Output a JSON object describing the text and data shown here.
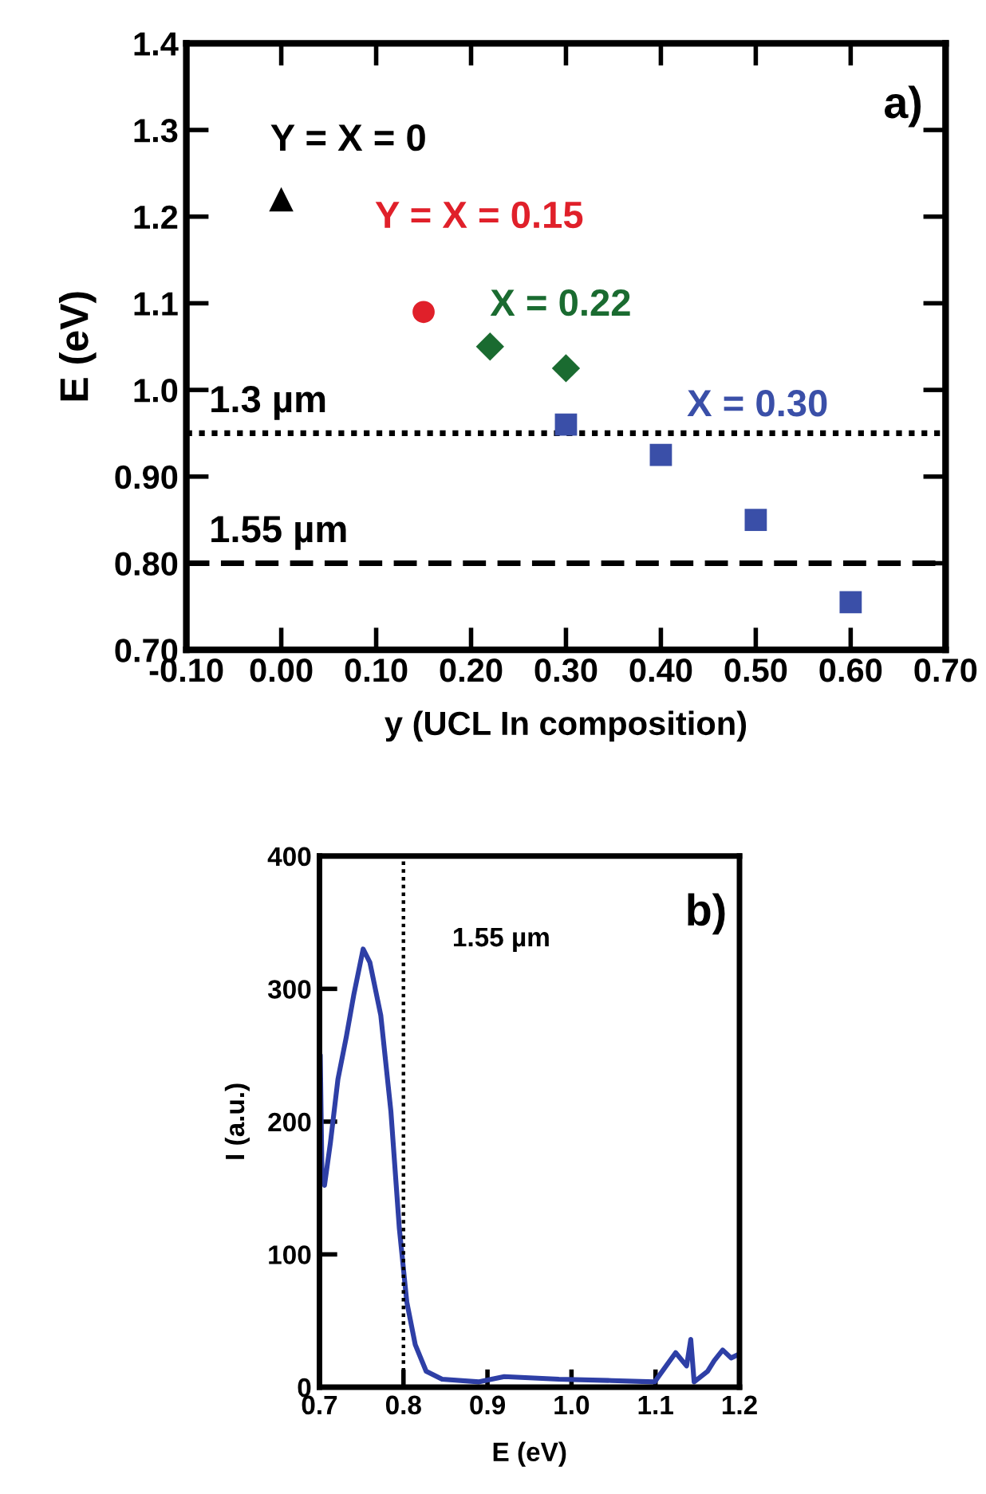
{
  "chart_data": [
    {
      "type": "scatter",
      "xlabel": "y (UCL In composition)",
      "ylabel": "E (eV)",
      "annotations": [
        "a)"
      ],
      "series": [
        {
          "name": "Y = X = 0",
          "color": "#000000",
          "marker": "triangle",
          "x": [
            0.0
          ],
          "values": [
            1.22
          ]
        },
        {
          "name": "Y = X = 0.15",
          "color": "#e0202a",
          "marker": "circle",
          "x": [
            0.15
          ],
          "values": [
            1.09
          ]
        },
        {
          "name": "X = 0.22",
          "color": "#1a6b30",
          "marker": "diamond",
          "x": [
            0.22,
            0.3
          ],
          "values": [
            1.05,
            1.025
          ]
        },
        {
          "name": "X = 0.30",
          "color": "#3a4fa8",
          "marker": "square",
          "x": [
            0.3,
            0.4,
            0.5,
            0.6
          ],
          "values": [
            0.96,
            0.925,
            0.85,
            0.755
          ]
        }
      ],
      "ref_lines": [
        {
          "axis": "y",
          "value": 0.95,
          "label": "1.3 µm",
          "color": "#000000",
          "line_style": "dotted"
        },
        {
          "axis": "y",
          "value": 0.8,
          "label": "1.55 µm",
          "color": "#000000",
          "line_style": "dashed"
        }
      ],
      "xlim": [
        -0.1,
        0.7
      ],
      "ylim": [
        0.7,
        1.4
      ],
      "xticks": [
        {
          "value": -0.1,
          "label": "-0.10"
        },
        {
          "value": 0.0,
          "label": "0.00"
        },
        {
          "value": 0.1,
          "label": "0.10"
        },
        {
          "value": 0.2,
          "label": "0.20"
        },
        {
          "value": 0.3,
          "label": "0.30"
        },
        {
          "value": 0.4,
          "label": "0.40"
        },
        {
          "value": 0.5,
          "label": "0.50"
        },
        {
          "value": 0.6,
          "label": "0.60"
        },
        {
          "value": 0.7,
          "label": "0.70"
        }
      ],
      "yticks": [
        {
          "value": 0.7,
          "label": "0.70"
        },
        {
          "value": 0.8,
          "label": "0.80"
        },
        {
          "value": 0.9,
          "label": "0.90"
        },
        {
          "value": 1.0,
          "label": "1.0"
        },
        1.1,
        1.2,
        1.3,
        1.4
      ],
      "grid": false,
      "legend": false
    },
    {
      "type": "line",
      "xlabel": "E (eV)",
      "ylabel": "I (a.u.)",
      "annotations": [
        "b)"
      ],
      "series": [
        {
          "color": "#2e3fa6",
          "x": [
            0.701,
            0.703,
            0.706,
            0.713,
            0.722,
            0.732,
            0.741,
            0.752,
            0.76,
            0.773,
            0.785,
            0.795,
            0.804,
            0.814,
            0.827,
            0.846,
            0.89,
            0.92,
            0.985,
            1.048,
            1.099,
            1.124,
            1.137,
            1.142,
            1.146,
            1.162,
            1.17,
            1.18,
            1.19,
            1.2
          ],
          "values": [
            250,
            160,
            152,
            184,
            232,
            264,
            296,
            330,
            320,
            280,
            208,
            120,
            64,
            32,
            12,
            6,
            4,
            8,
            6,
            5,
            4,
            26,
            16,
            36,
            4,
            12,
            20,
            28,
            22,
            25
          ]
        }
      ],
      "ref_lines": [
        {
          "axis": "x",
          "value": 0.8,
          "label": "1.55 µm",
          "color": "#000000",
          "line_style": "dotted"
        }
      ],
      "xlim": [
        0.7,
        1.2
      ],
      "ylim": [
        0,
        400
      ],
      "xticks": [
        0.7,
        0.8,
        0.9,
        {
          "value": 1.0,
          "label": "1.0"
        },
        1.1,
        1.2
      ],
      "yticks": [
        0,
        100,
        200,
        300,
        400
      ],
      "grid": false,
      "legend": false
    }
  ]
}
